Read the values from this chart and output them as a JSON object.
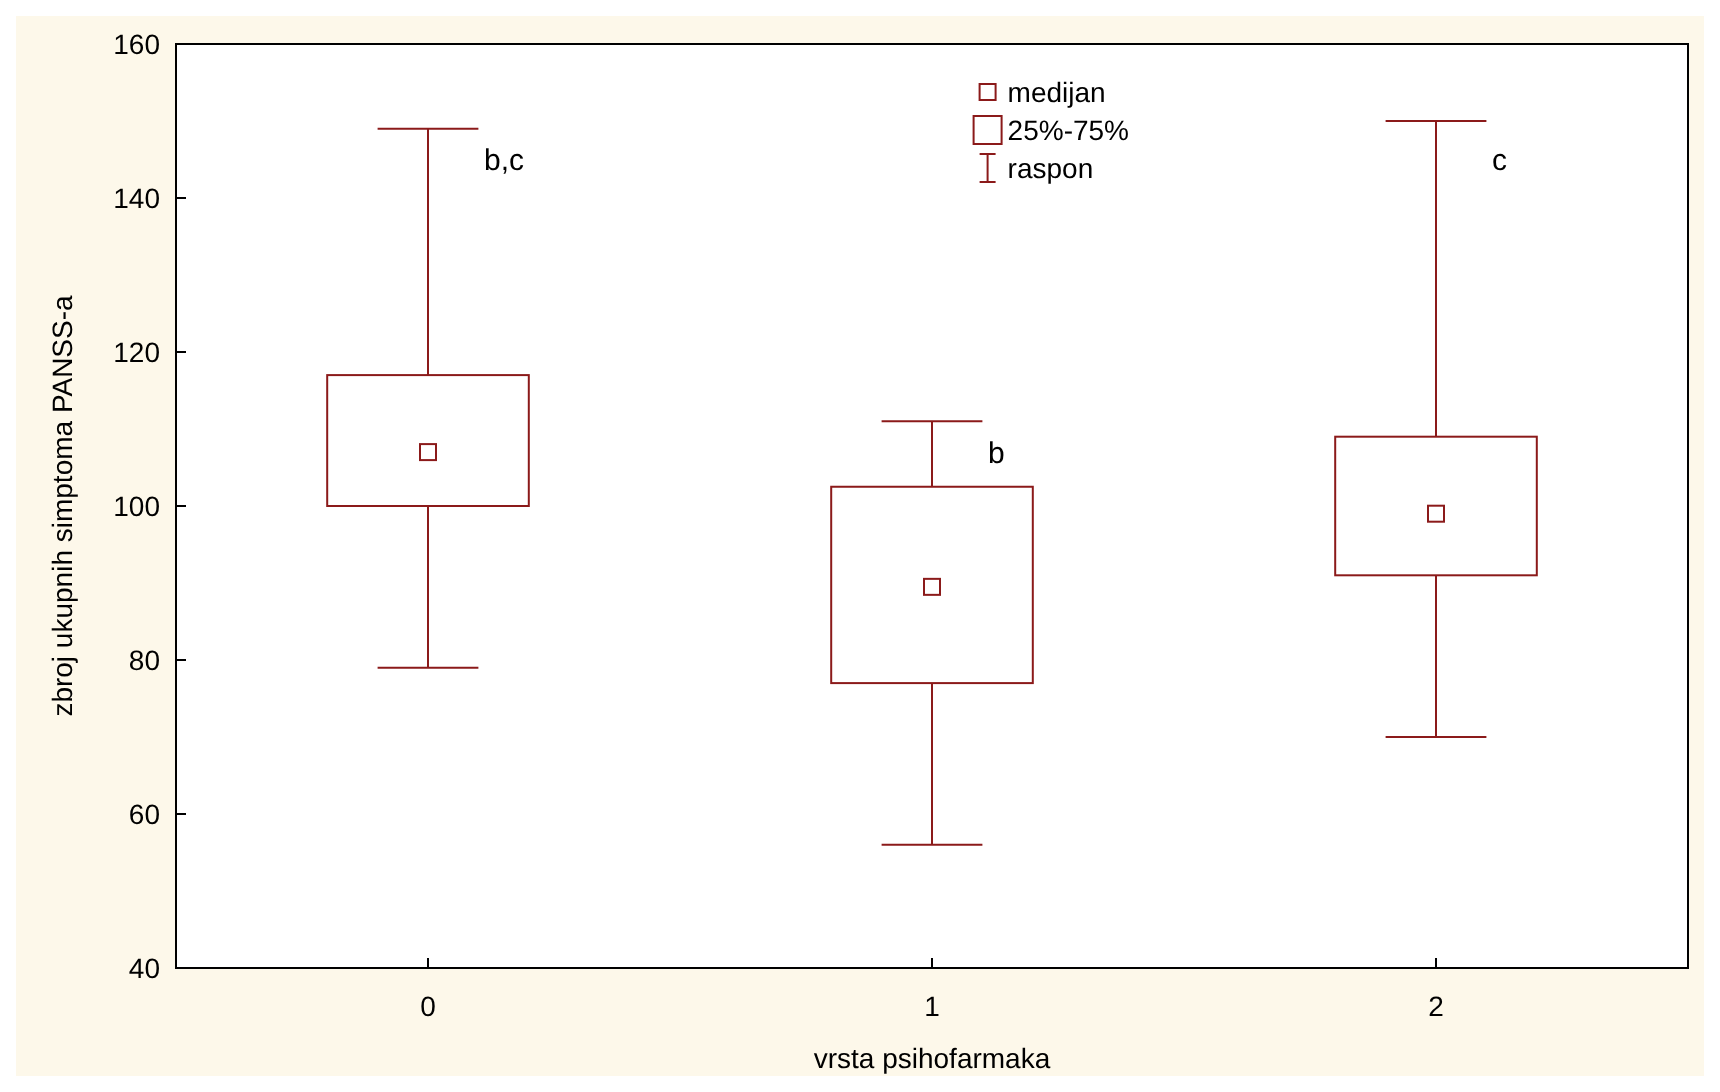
{
  "chart_data": {
    "type": "box",
    "xlabel": "vrsta psihofarmaka",
    "ylabel": "zbroj ukupnih simptoma PANSS-a",
    "categories": [
      "0",
      "1",
      "2"
    ],
    "series": [
      {
        "color": "#8b1a1a",
        "boxes": [
          {
            "low": 79,
            "q1": 100,
            "median": 107,
            "q3": 117,
            "high": 149
          },
          {
            "low": 56,
            "q1": 77,
            "median": 89.5,
            "q3": 102.5,
            "high": 111
          },
          {
            "low": 70,
            "q1": 91,
            "median": 99,
            "q3": 109,
            "high": 150
          }
        ]
      }
    ],
    "ylim": [
      40,
      160
    ],
    "yticks": [
      40,
      60,
      80,
      100,
      120,
      140,
      160
    ],
    "annotations": [
      "medijan",
      "25%-75%",
      "raspon",
      {
        "text": "b,c",
        "x": "0",
        "y": 145
      },
      {
        "text": "b",
        "x": "1",
        "y": 107
      },
      {
        "text": "c",
        "x": "2",
        "y": 145
      }
    ]
  }
}
